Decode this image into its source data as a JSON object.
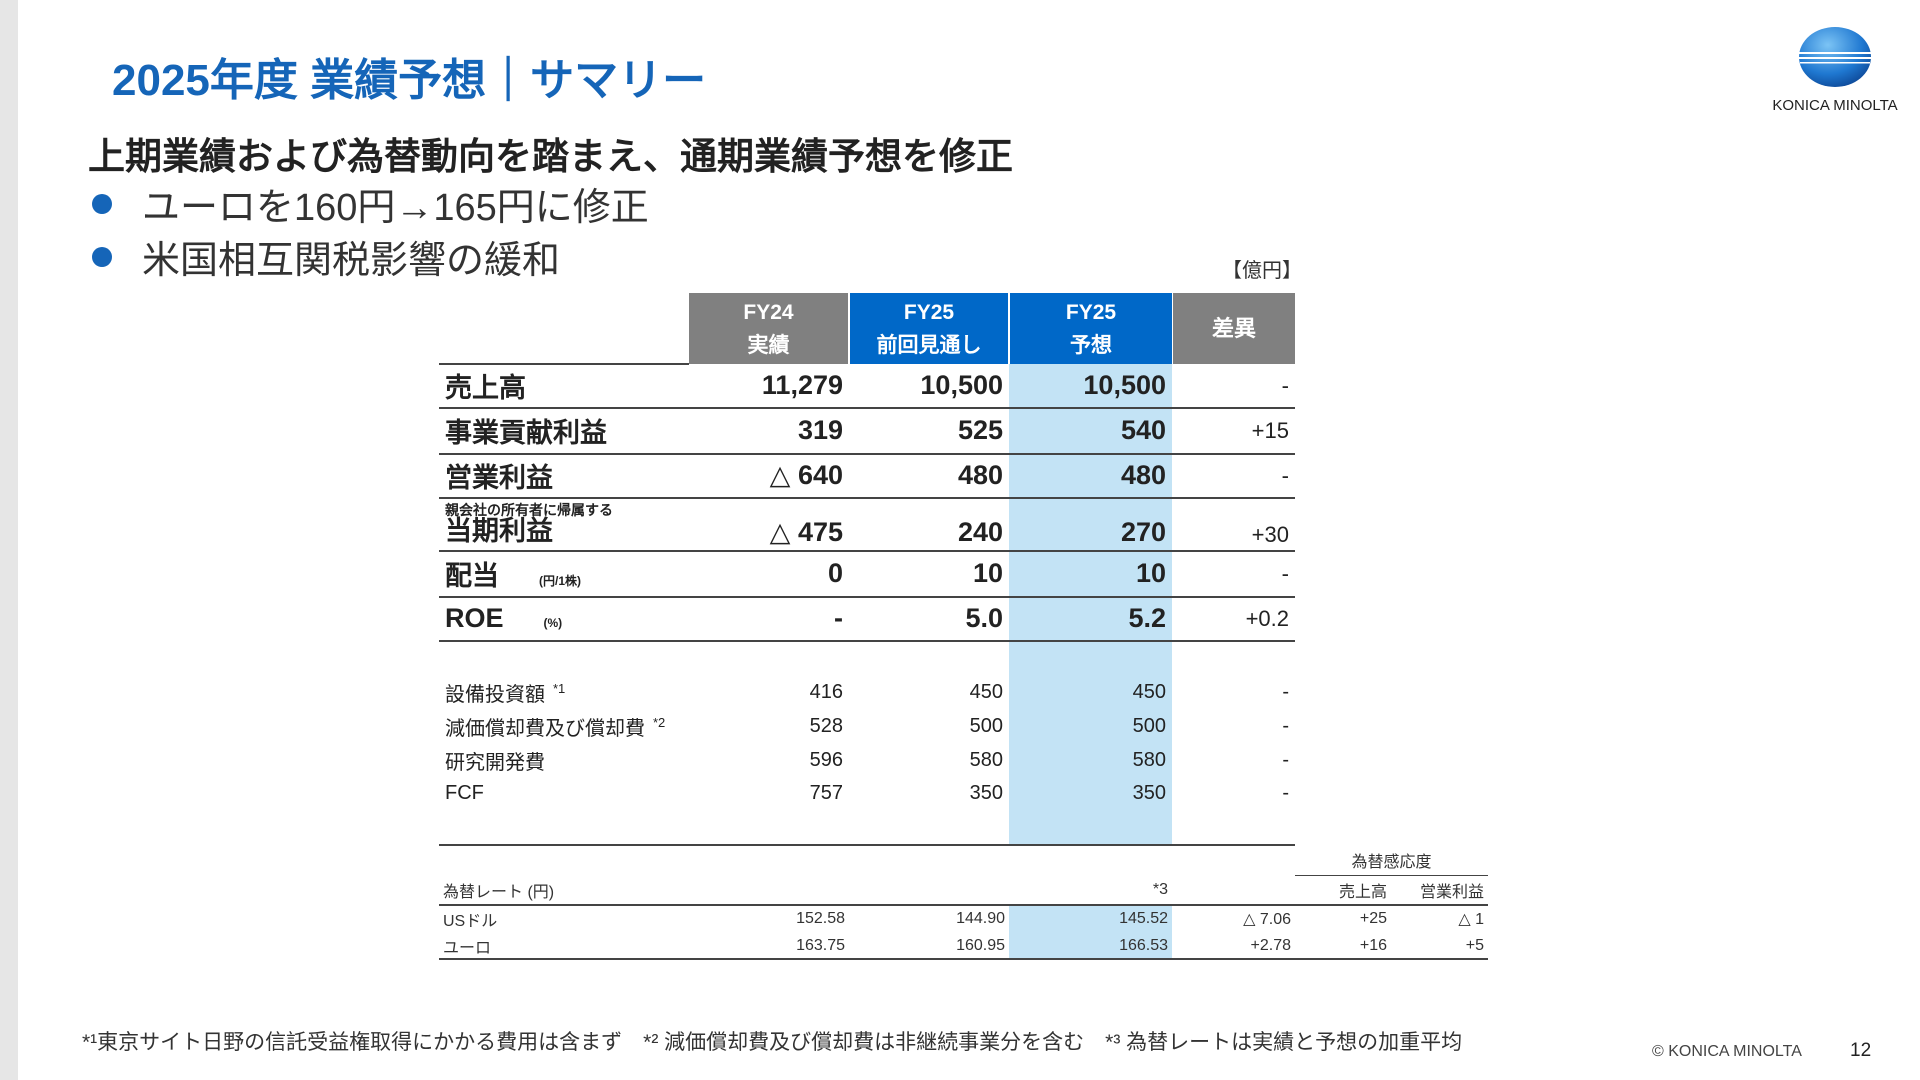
{
  "title": "2025年度 業績予想｜サマリー",
  "subtitle": "上期業績および為替動向を踏まえ、通期業績予想を修正",
  "bullets": [
    "ユーロを160円→165円に修正",
    "米国相互関税影響の緩和"
  ],
  "unit": "【億円】",
  "logo": {
    "text": "KONICA MINOLTA",
    "color": "#1565b8"
  },
  "table": {
    "headers": [
      {
        "l1": "FY24",
        "l2": "実績"
      },
      {
        "l1": "FY25",
        "l2": "前回見通し"
      },
      {
        "l1": "FY25",
        "l2": "予想"
      },
      {
        "l1": "差異",
        "l2": ""
      }
    ],
    "main_rows": [
      {
        "label": "売上高",
        "values": [
          "11,279",
          "10,500",
          "10,500",
          "-"
        ]
      },
      {
        "label": "事業貢献利益",
        "values": [
          "319",
          "525",
          "540",
          "+15"
        ]
      },
      {
        "label": "営業利益",
        "values": [
          "△ 640",
          "480",
          "480",
          "-"
        ]
      },
      {
        "pre": "親会社の所有者に帰属する",
        "label": "当期利益",
        "values": [
          "△ 475",
          "240",
          "270",
          "+30"
        ]
      },
      {
        "label": "配当",
        "note": "(円/1株)",
        "values": [
          "0",
          "10",
          "10",
          "-"
        ]
      },
      {
        "label": "ROE",
        "note": "(%)",
        "values": [
          "-",
          "5.0",
          "5.2",
          "+0.2"
        ]
      }
    ],
    "sub_rows": [
      {
        "label": "設備投資額",
        "sup": "*1",
        "values": [
          "416",
          "450",
          "450",
          "-"
        ]
      },
      {
        "label": "減価償却費及び償却費",
        "sup": "*2",
        "values": [
          "528",
          "500",
          "500",
          "-"
        ]
      },
      {
        "label": "研究開発費",
        "values": [
          "596",
          "580",
          "580",
          "-"
        ]
      },
      {
        "label": "FCF",
        "values": [
          "757",
          "350",
          "350",
          "-"
        ]
      }
    ]
  },
  "fx": {
    "sensitivity_title": "為替感応度",
    "header_label": "為替レート (円)",
    "header_note": "*3",
    "sens_cols": [
      "売上高",
      "営業利益"
    ],
    "rows": [
      {
        "label": "USドル",
        "values": [
          "152.58",
          "144.90",
          "145.52",
          "△ 7.06",
          "+25",
          "△ 1"
        ]
      },
      {
        "label": "ユーロ",
        "values": [
          "163.75",
          "160.95",
          "166.53",
          "+2.78",
          "+16",
          "+5"
        ]
      }
    ]
  },
  "footnote": "*¹東京サイト日野の信託受益権取得にかかる費用は含まず　*² 減価償却費及び償却費は非継続事業分を含む　*³ 為替レートは実績と予想の加重平均",
  "copyright": "© KONICA MINOLTA",
  "page": "12"
}
